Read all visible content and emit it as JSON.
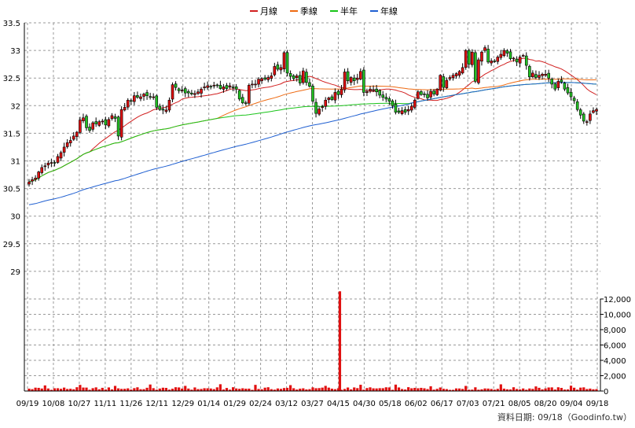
{
  "chart_data": {
    "type": "candlestick",
    "legend": [
      {
        "name": "月線",
        "color": "#d11f1f"
      },
      {
        "name": "季線",
        "color": "#ee6a12"
      },
      {
        "name": "半年",
        "color": "#19c419"
      },
      {
        "name": "年線",
        "color": "#1f5fd1"
      }
    ],
    "legend_placement": "top-center",
    "grid": true,
    "price_axis": {
      "ticks": [
        29,
        29.5,
        30,
        30.5,
        31,
        31.5,
        32,
        32.5,
        33,
        33.5
      ],
      "ylim": [
        28.5,
        33.5
      ]
    },
    "volume_axis": {
      "ticks": [
        "0",
        "2,000",
        "4,000",
        "6,000",
        "8,000",
        "10,000",
        "12,000"
      ],
      "ylim": [
        0,
        12000
      ]
    },
    "x_tick_labels": [
      "09/19",
      "10/08",
      "10/27",
      "11/11",
      "11/26",
      "12/11",
      "12/29",
      "01/14",
      "01/29",
      "02/24",
      "03/12",
      "03/27",
      "04/15",
      "04/30",
      "05/18",
      "06/02",
      "06/17",
      "07/03",
      "07/21",
      "08/05",
      "08/20",
      "09/04",
      "09/18"
    ],
    "close": [
      30.62,
      30.66,
      30.69,
      30.8,
      30.88,
      30.91,
      30.96,
      30.97,
      30.97,
      31.08,
      31.15,
      31.25,
      31.33,
      31.37,
      31.45,
      31.52,
      31.74,
      31.78,
      31.6,
      31.55,
      31.69,
      31.67,
      31.71,
      31.72,
      31.65,
      31.75,
      31.82,
      31.77,
      31.45,
      31.93,
      31.97,
      32.1,
      32.08,
      32.18,
      32.15,
      32.16,
      32.21,
      32.18,
      32.16,
      32.16,
      31.97,
      31.93,
      31.92,
      31.92,
      32.1,
      32.38,
      32.33,
      32.27,
      32.28,
      32.23,
      32.23,
      32.21,
      32.22,
      32.25,
      32.3,
      32.34,
      32.36,
      32.35,
      32.37,
      32.37,
      32.31,
      32.34,
      32.31,
      32.36,
      32.33,
      32.3,
      32.12,
      32.05,
      32.05,
      32.37,
      32.39,
      32.39,
      32.48,
      32.49,
      32.48,
      32.51,
      32.54,
      32.71,
      32.66,
      32.69,
      32.96,
      32.59,
      32.53,
      32.49,
      32.54,
      32.41,
      32.63,
      32.42,
      32.35,
      32.08,
      31.86,
      31.94,
      31.98,
      32.1,
      32.14,
      32.11,
      32.24,
      32.2,
      32.3,
      32.61,
      32.45,
      32.51,
      32.45,
      32.5,
      32.62,
      32.24,
      32.25,
      32.3,
      32.29,
      32.25,
      32.19,
      32.15,
      32.12,
      32.08,
      32.0,
      31.88,
      31.88,
      31.91,
      31.88,
      31.93,
      31.99,
      32.1,
      32.25,
      32.2,
      32.2,
      32.14,
      32.26,
      32.21,
      32.3,
      32.55,
      32.33,
      32.46,
      32.51,
      32.55,
      32.58,
      32.62,
      32.69,
      33.0,
      32.75,
      32.97,
      32.44,
      32.83,
      32.97,
      33.05,
      32.79,
      32.81,
      32.8,
      32.88,
      32.93,
      33.0,
      32.95,
      32.85,
      32.86,
      32.79,
      32.88,
      32.91,
      32.73,
      32.52,
      32.59,
      32.51,
      32.55,
      32.57,
      32.57,
      32.5,
      32.39,
      32.3,
      32.44,
      32.43,
      32.3,
      32.23,
      32.16,
      32.09,
      31.93,
      31.83,
      31.72,
      31.71,
      31.85,
      31.91,
      31.93
    ]
  },
  "footer": {
    "note": "資料日期: 09/18（Goodinfo.tw）"
  }
}
